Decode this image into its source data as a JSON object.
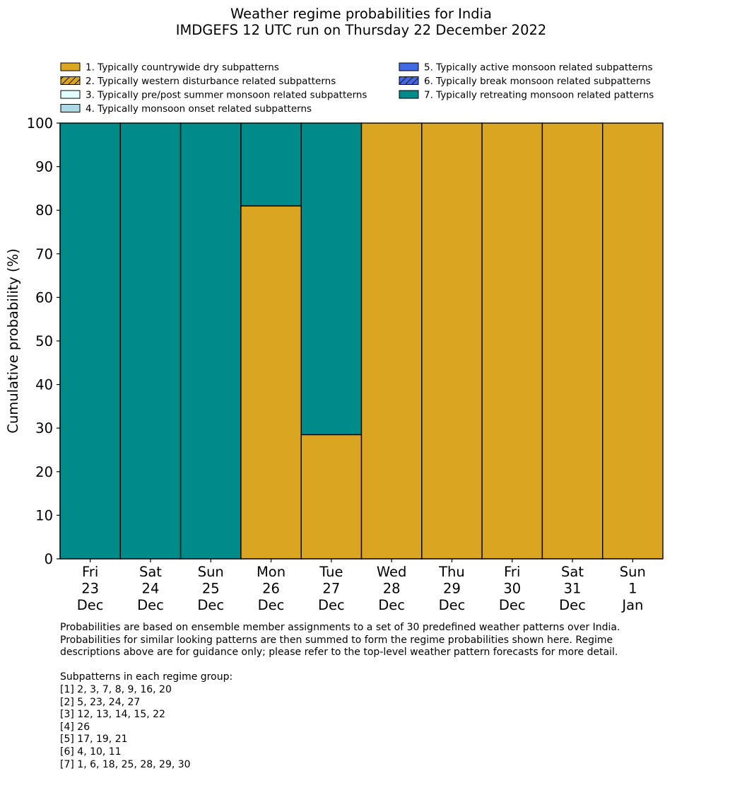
{
  "chart_data": {
    "type": "bar",
    "stacked": true,
    "title": "Weather regime probabilities for India",
    "subtitle": "IMDGEFS 12 UTC run on Thursday 22 December 2022",
    "xlabel": "",
    "ylabel": "Cumulative probability (%)",
    "ylim": [
      0,
      100
    ],
    "yticks": [
      0,
      10,
      20,
      30,
      40,
      50,
      60,
      70,
      80,
      90,
      100
    ],
    "grid": false,
    "legend_position": "top",
    "categories": [
      [
        "Fri",
        "23",
        "Dec"
      ],
      [
        "Sat",
        "24",
        "Dec"
      ],
      [
        "Sun",
        "25",
        "Dec"
      ],
      [
        "Mon",
        "26",
        "Dec"
      ],
      [
        "Tue",
        "27",
        "Dec"
      ],
      [
        "Wed",
        "28",
        "Dec"
      ],
      [
        "Thu",
        "29",
        "Dec"
      ],
      [
        "Fri",
        "30",
        "Dec"
      ],
      [
        "Sat",
        "31",
        "Dec"
      ],
      [
        "Sun",
        "1",
        "Jan"
      ]
    ],
    "series": [
      {
        "name": "1. Typically countrywide dry subpatterns",
        "color": "#daa520",
        "hatch": false,
        "values": [
          0,
          0,
          0,
          81,
          28.5,
          100,
          100,
          100,
          100,
          100
        ]
      },
      {
        "name": "2. Typically western disturbance related subpatterns",
        "color": "#daa520",
        "hatch": true,
        "values": [
          0,
          0,
          0,
          0,
          0,
          0,
          0,
          0,
          0,
          0
        ]
      },
      {
        "name": "3. Typically pre/post summer monsoon related subpatterns",
        "color": "#e0ffff",
        "hatch": false,
        "values": [
          0,
          0,
          0,
          0,
          0,
          0,
          0,
          0,
          0,
          0
        ]
      },
      {
        "name": "4. Typically monsoon onset related subpatterns",
        "color": "#add8e6",
        "hatch": false,
        "values": [
          0,
          0,
          0,
          0,
          0,
          0,
          0,
          0,
          0,
          0
        ]
      },
      {
        "name": "5. Typically active monsoon related subpatterns",
        "color": "#4169e1",
        "hatch": false,
        "values": [
          0,
          0,
          0,
          0,
          0,
          0,
          0,
          0,
          0,
          0
        ]
      },
      {
        "name": "6. Typically break monsoon related subpatterns",
        "color": "#4169e1",
        "hatch": true,
        "values": [
          0,
          0,
          0,
          0,
          0,
          0,
          0,
          0,
          0,
          0
        ]
      },
      {
        "name": "7. Typically retreating monsoon related patterns",
        "color": "#008b8b",
        "hatch": false,
        "values": [
          100,
          100,
          100,
          19,
          71.5,
          0,
          0,
          0,
          0,
          0
        ]
      }
    ]
  },
  "notes": {
    "paragraph": [
      "Probabilities are based on ensemble member assignments to a set of 30 predefined weather patterns over India.",
      "Probabilities for similar looking patterns are then summed to form the regime probabilities shown here. Regime",
      "descriptions above are for guidance only; please refer to the top-level weather pattern forecasts for more detail."
    ],
    "heading": "Subpatterns in each regime group:",
    "groups": [
      "[1] 2, 3, 7, 8, 9, 16, 20",
      "[2] 5, 23, 24, 27",
      "[3] 12, 13, 14, 15, 22",
      "[4] 26",
      "[5] 17, 19, 21",
      "[6] 4, 10, 11",
      "[7] 1, 6, 18, 25, 28, 29, 30"
    ]
  }
}
